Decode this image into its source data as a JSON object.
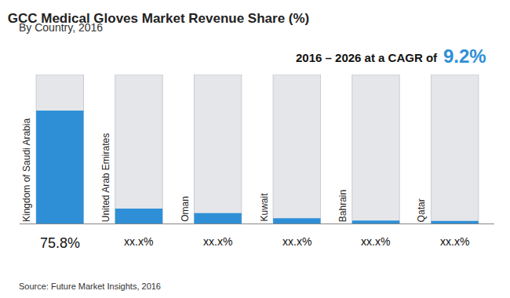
{
  "chart_data": {
    "type": "bar",
    "title": "GCC Medical Gloves Market Revenue Share (%)",
    "subtitle": "By Country, 2016",
    "categories": [
      "Kingdom of Saudi Arabia",
      "United Arab Emirates",
      "Oman",
      "Kuwait",
      "Bahrain",
      "Qatar"
    ],
    "values": [
      75.8,
      10.0,
      7.0,
      3.5,
      2.0,
      1.7
    ],
    "value_labels": [
      "75.8%",
      "xx.x%",
      "xx.x%",
      "xx.x%",
      "xx.x%",
      "xx.x%"
    ],
    "data_labels": true,
    "color": "#2e8fd6",
    "ylim": [
      0,
      100
    ],
    "tick_labels": false,
    "grid": false,
    "annotations": [
      "2016 – 2026 at a CAGR of",
      "9.2%"
    ],
    "source": "Source: Future Market Insights, 2016"
  }
}
